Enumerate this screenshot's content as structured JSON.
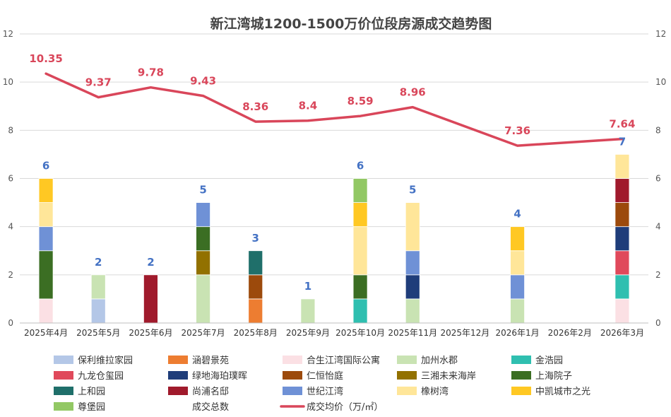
{
  "chart_data": {
    "type": "bar",
    "title": "新江湾城1200-1500万价位段房源成交趋势图",
    "categories": [
      "2025年4月",
      "2025年5月",
      "2025年6月",
      "2025年7月",
      "2025年8月",
      "2025年9月",
      "2025年10月",
      "2025年11月",
      "2025年12月",
      "2026年1月",
      "2026年2月",
      "2026年3月"
    ],
    "ylim": [
      0,
      12
    ],
    "yticks": [
      "0",
      "2",
      "4",
      "6",
      "8",
      "10",
      "12"
    ],
    "series": [
      {
        "name": "保利维拉家园",
        "color": "#B4C7E7",
        "values": [
          0,
          1,
          0,
          0,
          0,
          0,
          0,
          0,
          0,
          0,
          0,
          0
        ]
      },
      {
        "name": "涵碧景苑",
        "color": "#ED7D31",
        "values": [
          0,
          0,
          0,
          0,
          1,
          0,
          0,
          0,
          0,
          0,
          0,
          0
        ]
      },
      {
        "name": "合生江湾国际公寓",
        "color": "#FBE0E4",
        "values": [
          1,
          0,
          0,
          0,
          0,
          0,
          0,
          0,
          0,
          0,
          0,
          1
        ]
      },
      {
        "name": "加州水郡",
        "color": "#C9E3B3",
        "values": [
          0,
          1,
          0,
          2,
          0,
          1,
          0,
          1,
          0,
          1,
          0,
          0
        ]
      },
      {
        "name": "金浩园",
        "color": "#2FBFB0",
        "values": [
          0,
          0,
          0,
          0,
          0,
          0,
          1,
          0,
          0,
          0,
          0,
          1
        ]
      },
      {
        "name": "九龙仓玺园",
        "color": "#E0495B",
        "values": [
          0,
          0,
          0,
          0,
          0,
          0,
          0,
          0,
          0,
          0,
          0,
          1
        ]
      },
      {
        "name": "绿地海珀璞晖",
        "color": "#1F3D7A",
        "values": [
          0,
          0,
          0,
          0,
          0,
          0,
          0,
          1,
          0,
          0,
          0,
          1
        ]
      },
      {
        "name": "仁恒怡庭",
        "color": "#9C4A0C",
        "values": [
          0,
          0,
          0,
          0,
          1,
          0,
          0,
          0,
          0,
          0,
          0,
          1
        ]
      },
      {
        "name": "三湘未来海岸",
        "color": "#927100",
        "values": [
          0,
          0,
          0,
          1,
          0,
          0,
          0,
          0,
          0,
          0,
          0,
          0
        ]
      },
      {
        "name": "上海院子",
        "color": "#3B6E23",
        "values": [
          2,
          0,
          0,
          1,
          0,
          0,
          1,
          0,
          0,
          0,
          0,
          0
        ]
      },
      {
        "name": "上和园",
        "color": "#1F6F6A",
        "values": [
          0,
          0,
          0,
          0,
          1,
          0,
          0,
          0,
          0,
          0,
          0,
          0
        ]
      },
      {
        "name": "尚浦名邸",
        "color": "#A01A2C",
        "values": [
          0,
          0,
          2,
          0,
          0,
          0,
          0,
          0,
          0,
          0,
          0,
          1
        ]
      },
      {
        "name": "世纪江湾",
        "color": "#6F91D6",
        "values": [
          1,
          0,
          0,
          1,
          0,
          0,
          0,
          1,
          0,
          1,
          0,
          0
        ]
      },
      {
        "name": "橡树湾",
        "color": "#FFE699",
        "values": [
          1,
          0,
          0,
          0,
          0,
          0,
          2,
          2,
          0,
          1,
          0,
          1
        ]
      },
      {
        "name": "中凯城市之光",
        "color": "#FFC823",
        "values": [
          1,
          0,
          0,
          0,
          0,
          0,
          1,
          0,
          0,
          1,
          0,
          0
        ]
      },
      {
        "name": "尊堡园",
        "color": "#92C864",
        "values": [
          0,
          0,
          0,
          0,
          0,
          0,
          1,
          0,
          0,
          0,
          0,
          0
        ]
      }
    ],
    "totals": {
      "name": "成交总数",
      "values": [
        6,
        2,
        2,
        5,
        3,
        1,
        6,
        5,
        null,
        4,
        null,
        7
      ],
      "labels": [
        "6",
        "2",
        "2",
        "5",
        "3",
        "1",
        "6",
        "5",
        "",
        "4",
        "",
        "7"
      ],
      "color": "#4472C4"
    },
    "avg_price": {
      "name": "成交均价（万/㎡）",
      "color": "#D9465A",
      "values": [
        10.35,
        9.37,
        9.78,
        9.43,
        8.36,
        8.4,
        8.59,
        8.96,
        null,
        7.36,
        null,
        7.64
      ],
      "labels": [
        "10.35",
        "9.37",
        "9.78",
        "9.43",
        "8.36",
        "8.4",
        "8.59",
        "8.96",
        "",
        "7.36",
        "",
        "7.64"
      ]
    },
    "legend_order": [
      "保利维拉家园",
      "涵碧景苑",
      "合生江湾国际公寓",
      "加州水郡",
      "金浩园",
      "九龙仓玺园",
      "绿地海珀璞晖",
      "仁恒怡庭",
      "三湘未来海岸",
      "上海院子",
      "上和园",
      "尚浦名邸",
      "世纪江湾",
      "橡树湾",
      "中凯城市之光",
      "尊堡园",
      "成交总数",
      "成交均价（万/㎡）"
    ],
    "xlabel": "",
    "ylabel": "",
    "legend_position": "bottom",
    "grid": true
  }
}
